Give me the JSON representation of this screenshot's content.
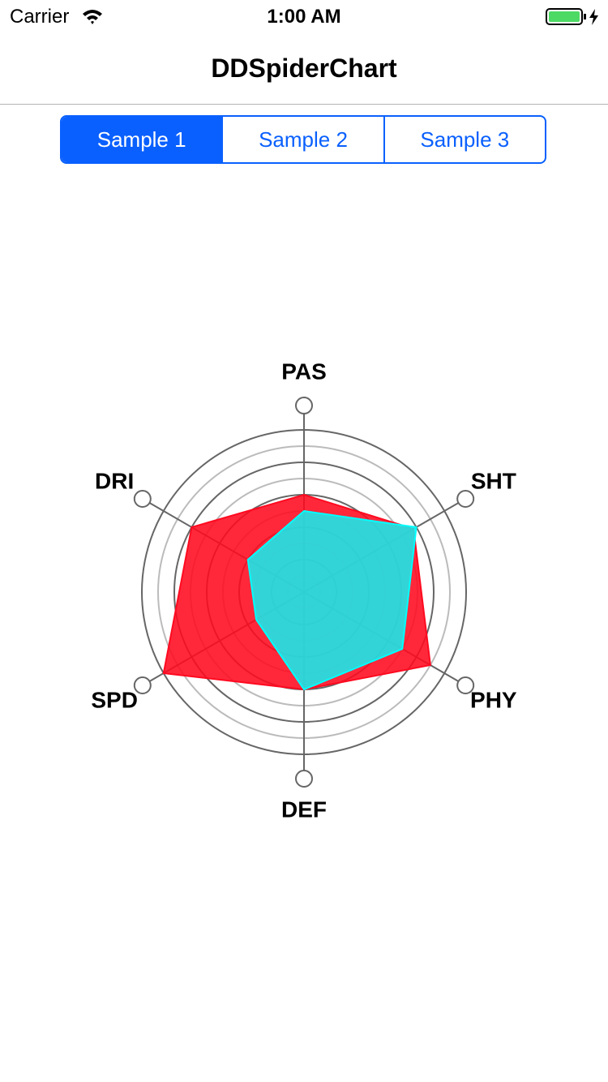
{
  "status_bar": {
    "carrier": "Carrier",
    "time": "1:00 AM"
  },
  "nav_bar": {
    "title": "DDSpiderChart"
  },
  "segmented_control": {
    "segments": [
      "Sample 1",
      "Sample 2",
      "Sample 3"
    ],
    "selected": 0
  },
  "chart_data": {
    "type": "radar",
    "categories": [
      "PAS",
      "SHT",
      "PHY",
      "DEF",
      "SPD",
      "DRI"
    ],
    "ylim": [
      0,
      1
    ],
    "series": [
      {
        "color": "#ff0a20",
        "values": [
          0.6,
          0.78,
          0.9,
          0.6,
          1.0,
          0.8
        ]
      },
      {
        "color": "#00ffff",
        "values": [
          0.5,
          0.8,
          0.7,
          0.6,
          0.34,
          0.4
        ]
      }
    ]
  }
}
